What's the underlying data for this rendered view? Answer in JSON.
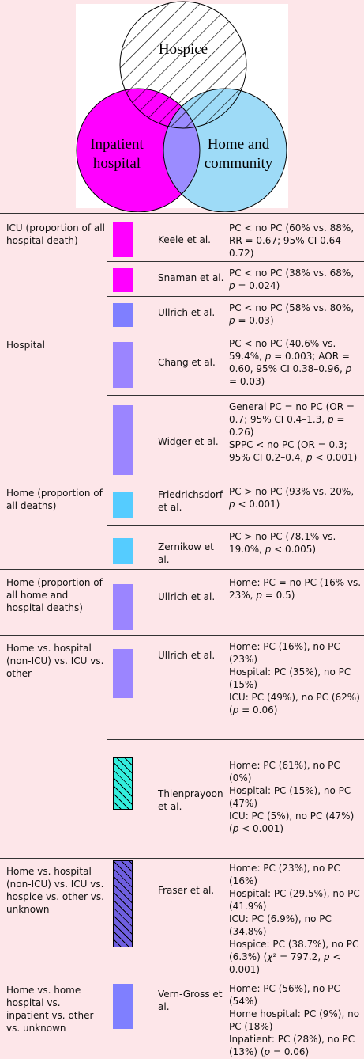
{
  "venn": {
    "labels": [
      {
        "lines": [
          "Hospice"
        ]
      },
      {
        "lines": [
          "Inpatient",
          "hospital"
        ]
      },
      {
        "lines": [
          "Home and",
          "community"
        ]
      }
    ]
  },
  "table": {
    "groups": [
      {
        "outcome": "ICU (proportion of all hospital death)",
        "rows": [
          {
            "study": "Keele et al.",
            "result": [
              "PC < no PC (60% vs. 88%, RR = 0.67; 95% CI 0.64–0.72)"
            ],
            "color": "#ff00ff"
          },
          {
            "study": "Snaman et al.",
            "result": [
              "PC < no PC (38% vs. 68%, p = 0.024)"
            ],
            "color": "#ff00ff"
          },
          {
            "study": "Ullrich et al.",
            "result": [
              "PC < no PC (58% vs. 80%, p = 0.03)"
            ],
            "color": "#7f7fff"
          }
        ]
      },
      {
        "outcome": "Hospital",
        "rows": [
          {
            "study": "Chang et al.",
            "result": [
              "PC < no PC (40.6% vs. 59.4%, p = 0.003; AOR = 0.60, 95% CI 0.38–0.96, p = 0.03)"
            ],
            "color": "#9b85ff"
          },
          {
            "study": "Widger et al.",
            "result": [
              "General PC = no PC (OR = 0.7; 95% CI 0.4–1.3, p = 0.26)",
              "SPPC < no PC (OR = 0.3; 95% CI 0.2–0.4, p < 0.001)"
            ],
            "color": "#9b85ff"
          }
        ]
      },
      {
        "outcome": "Home (proportion of all deaths)",
        "rows": [
          {
            "study": "Friedrichsdorf et al.",
            "result": [
              "PC > no PC (93% vs. 20%, p < 0.001)"
            ],
            "color": "#55ccff"
          },
          {
            "study": "Zernikow et al.",
            "result": [
              "PC > no PC (78.1% vs. 19.0%, p < 0.005)"
            ],
            "color": "#55ccff"
          }
        ]
      },
      {
        "outcome": "Home (proportion of all home and hospital deaths)",
        "rows": [
          {
            "study": "Ullrich et al.",
            "result": [
              "Home: PC = no PC (16% vs. 23%, p = 0.5)"
            ],
            "color": "#9b85ff"
          }
        ]
      },
      {
        "outcome": "Home vs. hospital (non-ICU) vs. ICU vs. other",
        "rows": [
          {
            "study": "Ullrich et al.",
            "result": [
              "Home: PC (16%), no PC (23%)",
              "Hospital: PC (35%), no PC (15%)",
              "ICU: PC (49%), no PC (62%) (p = 0.06)"
            ],
            "color": "#9b85ff"
          },
          {
            "study": "Thienprayoon et al.",
            "result": [
              "Home: PC (61%), no PC (0%)",
              "Hospital: PC (15%), no PC (47%)",
              "ICU: PC (5%), no PC (47%) (p < 0.001)"
            ],
            "color": "#33eedd",
            "hatch": true
          }
        ]
      },
      {
        "outcome": "Home vs. hospital (non-ICU) vs. ICU vs. hospice vs. other vs. unknown",
        "rows": [
          {
            "study": "Fraser et al.",
            "result": [
              "Home: PC (23%), no PC (16%)",
              "Hospital: PC (29.5%), no PC (41.9%)",
              "ICU: PC (6.9%), no PC (34.8%)",
              "Hospice: PC (38.7%), no PC (6.3%) (χ² = 797.2, p < 0.001)"
            ],
            "color": "#6f5fe0",
            "hatch": true
          }
        ]
      },
      {
        "outcome": "Home vs. home hospital vs. inpatient vs. other vs. unknown",
        "rows": [
          {
            "study": "Vern-Gross et al.",
            "result": [
              "Home: PC (56%), no PC (54%)",
              "Home hospital: PC (9%), no PC (18%)",
              "Inpatient: PC (28%), no PC (13%) (p = 0.06)"
            ],
            "color": "#7f7fff"
          }
        ]
      }
    ]
  }
}
